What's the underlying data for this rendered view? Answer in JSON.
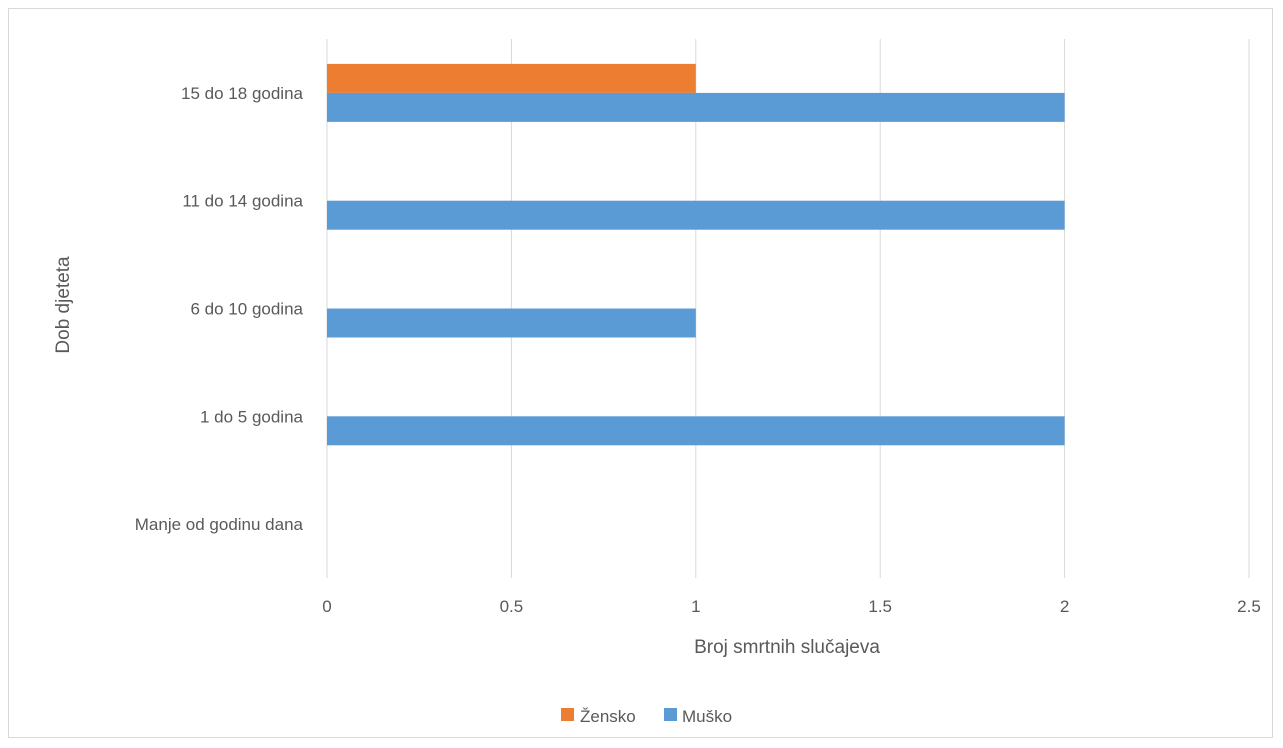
{
  "chart_data": {
    "type": "bar",
    "orientation": "horizontal",
    "categories": [
      "Manje od godinu dana",
      "1 do 5 godina",
      "6 do 10 godina",
      "11 do 14 godina",
      "15 do 18 godina"
    ],
    "series": [
      {
        "name": "Žensko",
        "values": [
          0,
          0,
          0,
          0,
          1
        ],
        "color": "#ED7D31"
      },
      {
        "name": "Muško",
        "values": [
          0,
          2,
          1,
          2,
          2
        ],
        "color": "#5B9BD5"
      }
    ],
    "title": "",
    "xlabel": "Broj smrtnih slučajeva",
    "ylabel": "Dob djeteta",
    "xlim": [
      0,
      2.5
    ],
    "xticks": [
      "0",
      "0.5",
      "1",
      "1.5",
      "2",
      "2.5"
    ],
    "grid": true,
    "gridline_color": "#d9d9d9",
    "legend": "bottom"
  }
}
